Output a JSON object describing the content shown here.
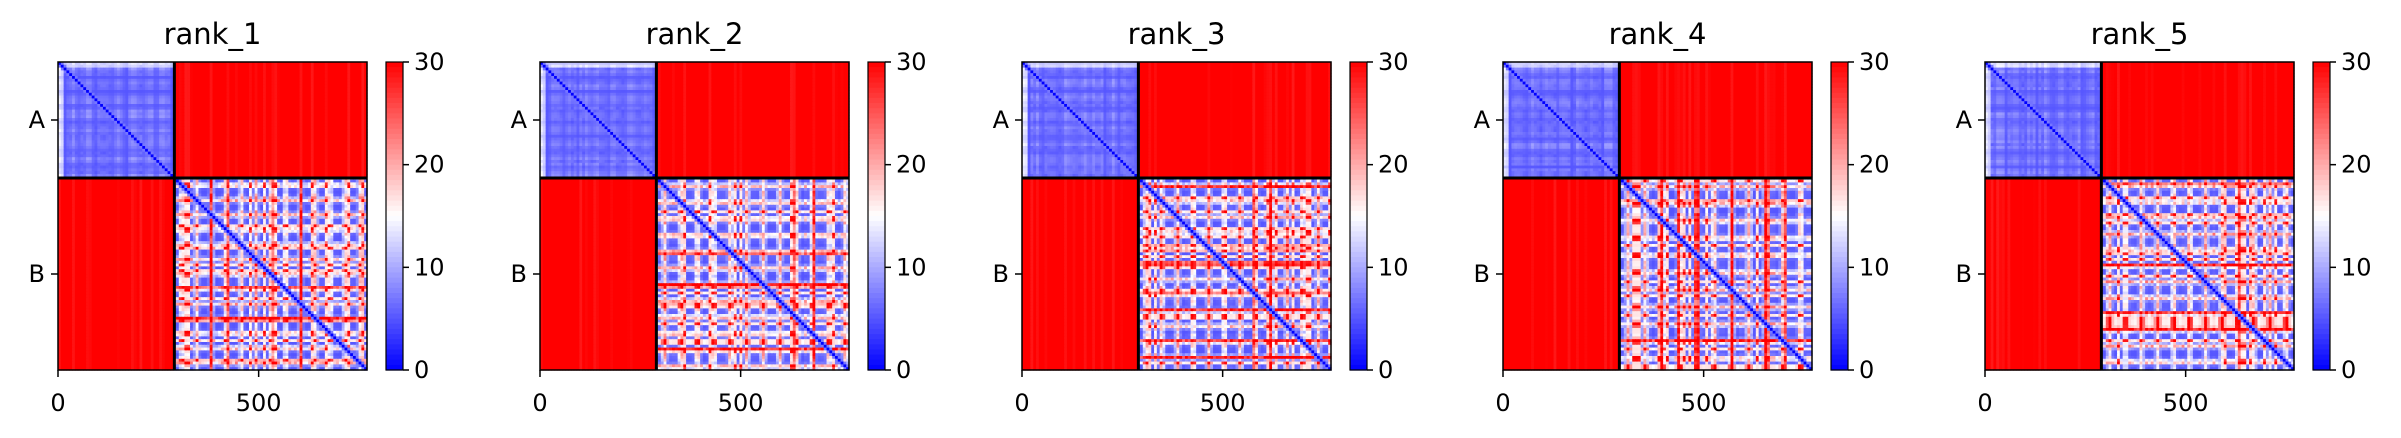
{
  "chart_data": [
    {
      "type": "heatmap",
      "title": "rank_1",
      "xlabel": "",
      "ylabel": "",
      "x_ticks": [
        0,
        500
      ],
      "y_tick_labels": [
        "A",
        "B"
      ],
      "chain_boundary": 290,
      "length": 770,
      "xlim": [
        0,
        770
      ],
      "colorbar": {
        "range": [
          0,
          30
        ],
        "ticks": [
          0,
          10,
          20,
          30
        ],
        "colormap": "bwr"
      },
      "pattern": {
        "intra_chain_value": 5,
        "inter_chain_value": 30,
        "diagonal_value": 0,
        "chain_B_stripe_period": 37
      }
    },
    {
      "type": "heatmap",
      "title": "rank_2",
      "xlabel": "",
      "ylabel": "",
      "x_ticks": [
        0,
        500
      ],
      "y_tick_labels": [
        "A",
        "B"
      ],
      "chain_boundary": 290,
      "length": 770,
      "xlim": [
        0,
        770
      ],
      "colorbar": {
        "range": [
          0,
          30
        ],
        "ticks": [
          0,
          10,
          20,
          30
        ],
        "colormap": "bwr"
      },
      "pattern": {
        "intra_chain_value": 5,
        "inter_chain_value": 30,
        "diagonal_value": 0,
        "chain_B_stripe_period": 41
      }
    },
    {
      "type": "heatmap",
      "title": "rank_3",
      "xlabel": "",
      "ylabel": "",
      "x_ticks": [
        0,
        500
      ],
      "y_tick_labels": [
        "A",
        "B"
      ],
      "chain_boundary": 290,
      "length": 770,
      "xlim": [
        0,
        770
      ],
      "colorbar": {
        "range": [
          0,
          30
        ],
        "ticks": [
          0,
          10,
          20,
          30
        ],
        "colormap": "bwr"
      },
      "pattern": {
        "intra_chain_value": 5,
        "inter_chain_value": 30,
        "diagonal_value": 0,
        "chain_B_stripe_period": 39
      }
    },
    {
      "type": "heatmap",
      "title": "rank_4",
      "xlabel": "",
      "ylabel": "",
      "x_ticks": [
        0,
        500
      ],
      "y_tick_labels": [
        "A",
        "B"
      ],
      "chain_boundary": 290,
      "length": 770,
      "xlim": [
        0,
        770
      ],
      "colorbar": {
        "range": [
          0,
          30
        ],
        "ticks": [
          0,
          10,
          20,
          30
        ],
        "colormap": "bwr"
      },
      "pattern": {
        "intra_chain_value": 5,
        "inter_chain_value": 30,
        "diagonal_value": 0,
        "chain_B_stripe_period": 43
      }
    },
    {
      "type": "heatmap",
      "title": "rank_5",
      "xlabel": "",
      "ylabel": "",
      "x_ticks": [
        0,
        500
      ],
      "y_tick_labels": [
        "A",
        "B"
      ],
      "chain_boundary": 290,
      "length": 770,
      "xlim": [
        0,
        770
      ],
      "colorbar": {
        "range": [
          0,
          30
        ],
        "ticks": [
          0,
          10,
          20,
          30
        ],
        "colormap": "bwr"
      },
      "pattern": {
        "intra_chain_value": 5,
        "inter_chain_value": 30,
        "diagonal_value": 0,
        "chain_B_stripe_period": 40
      }
    }
  ]
}
